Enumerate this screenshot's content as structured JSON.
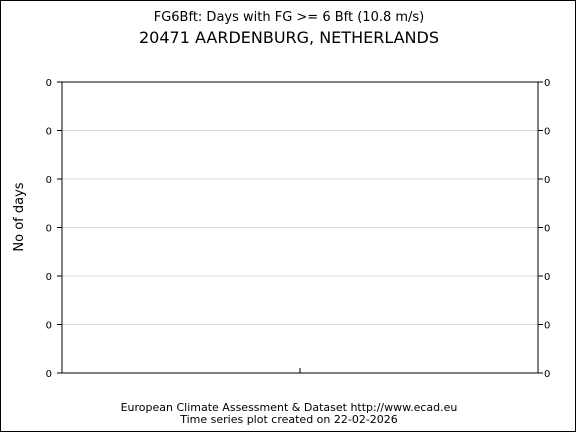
{
  "chart_data": {
    "type": "line",
    "title": "FG6Bft: Days with FG >= 6 Bft (10.8 m/s)",
    "subtitle": "20471 AARDENBURG, NETHERLANDS",
    "xlabel": "",
    "ylabel": "No of days",
    "y_tick_labels": [
      "0",
      "0",
      "0",
      "0",
      "0",
      "0",
      "0"
    ],
    "series": [],
    "grid": true,
    "legend": "none"
  },
  "footer": {
    "line1": "European Climate Assessment & Dataset  http://www.ecad.eu",
    "line2": "Time series plot created on 22-02-2026"
  },
  "colors": {
    "axis": "#000000",
    "grid": "#d9d9d9",
    "text": "#000000",
    "background": "#ffffff"
  }
}
